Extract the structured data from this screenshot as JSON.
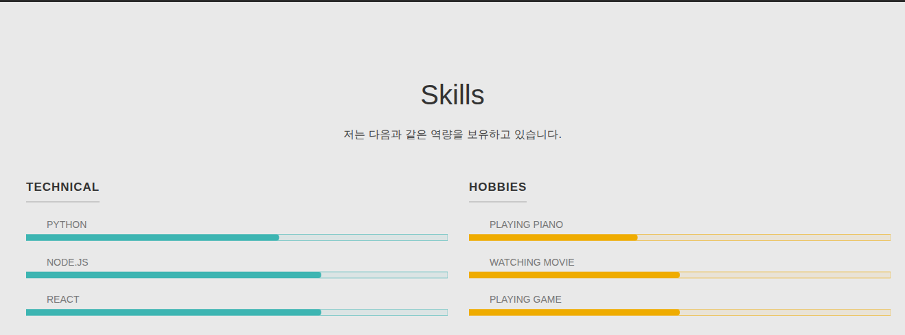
{
  "page": {
    "title": "Skills",
    "subtitle": "저는 다음과 같은 역량을 보유하고 있습니다."
  },
  "chart_data": [
    {
      "type": "bar",
      "orientation": "horizontal",
      "title": "TECHNICAL",
      "categories": [
        "PYTHON",
        "NODE.JS",
        "REACT"
      ],
      "values": [
        60,
        70,
        70
      ],
      "color": "#3db5b2",
      "xlim": [
        0,
        100
      ],
      "xticks": [],
      "grid": false,
      "tick_labels": false
    },
    {
      "type": "bar",
      "orientation": "horizontal",
      "title": "HOBBIES",
      "categories": [
        "PLAYING PIANO",
        "WATCHING MOVIE",
        "PLAYING GAME"
      ],
      "values": [
        40,
        50,
        50
      ],
      "color": "#efac00",
      "xlim": [
        0,
        100
      ],
      "xticks": [],
      "grid": false,
      "tick_labels": false
    }
  ]
}
